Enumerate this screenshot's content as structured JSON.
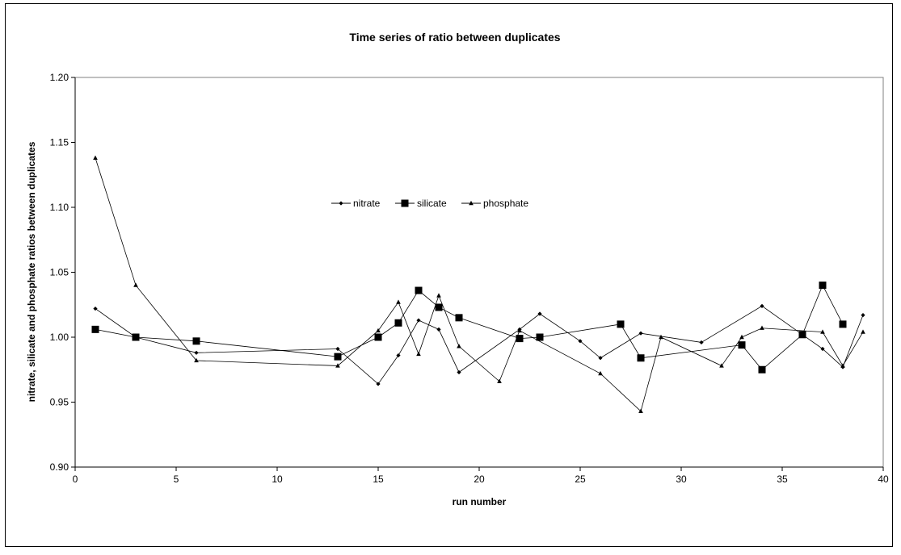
{
  "chart_data": {
    "type": "line",
    "title": "Time series of ratio between duplicates",
    "xlabel": "run number",
    "ylabel": "nitrate, silicate and phosphate ratios between duplicates",
    "xlim": [
      0,
      40
    ],
    "ylim": [
      0.9,
      1.2
    ],
    "xticks": [
      0,
      5,
      10,
      15,
      20,
      25,
      30,
      35,
      40
    ],
    "yticks": [
      0.9,
      0.95,
      1.0,
      1.05,
      1.1,
      1.15,
      1.2
    ],
    "ytick_labels": [
      "0.90",
      "0.95",
      "1.00",
      "1.05",
      "1.10",
      "1.15",
      "1.20"
    ],
    "grid": false,
    "legend_position": "center",
    "series": [
      {
        "name": "nitrate",
        "marker": "diamond",
        "points": [
          [
            1,
            1.022
          ],
          [
            3,
            1.0
          ],
          [
            6,
            0.988
          ],
          [
            13,
            0.991
          ],
          [
            15,
            0.964
          ],
          [
            16,
            0.986
          ],
          [
            17,
            1.013
          ],
          [
            18,
            1.006
          ],
          [
            19,
            0.973
          ],
          [
            22,
            1.006
          ],
          [
            23,
            1.018
          ],
          [
            25,
            0.997
          ],
          [
            26,
            0.984
          ],
          [
            28,
            1.003
          ],
          [
            31,
            0.996
          ],
          [
            34,
            1.024
          ],
          [
            36,
            1.002
          ],
          [
            37,
            0.991
          ],
          [
            38,
            0.977
          ],
          [
            39,
            1.017
          ]
        ]
      },
      {
        "name": "silicate",
        "marker": "square",
        "points": [
          [
            1,
            1.006
          ],
          [
            3,
            1.0
          ],
          [
            6,
            0.997
          ],
          [
            13,
            0.985
          ],
          [
            15,
            1.0
          ],
          [
            16,
            1.011
          ],
          [
            17,
            1.036
          ],
          [
            18,
            1.023
          ],
          [
            19,
            1.015
          ],
          [
            22,
            0.999
          ],
          [
            23,
            1.0
          ],
          [
            27,
            1.01
          ],
          [
            28,
            0.984
          ],
          [
            33,
            0.994
          ],
          [
            34,
            0.975
          ],
          [
            36,
            1.002
          ],
          [
            37,
            1.04
          ],
          [
            38,
            1.01
          ]
        ]
      },
      {
        "name": "phosphate",
        "marker": "triangle",
        "points": [
          [
            1,
            1.138
          ],
          [
            3,
            1.04
          ],
          [
            6,
            0.982
          ],
          [
            13,
            0.978
          ],
          [
            15,
            1.005
          ],
          [
            16,
            1.027
          ],
          [
            17,
            0.987
          ],
          [
            18,
            1.032
          ],
          [
            19,
            0.993
          ],
          [
            21,
            0.966
          ],
          [
            22,
            1.005
          ],
          [
            26,
            0.972
          ],
          [
            28,
            0.943
          ],
          [
            29,
            1.0
          ],
          [
            32,
            0.978
          ],
          [
            33,
            1.0
          ],
          [
            34,
            1.007
          ],
          [
            37,
            1.004
          ],
          [
            38,
            0.978
          ],
          [
            39,
            1.004
          ]
        ]
      }
    ]
  }
}
